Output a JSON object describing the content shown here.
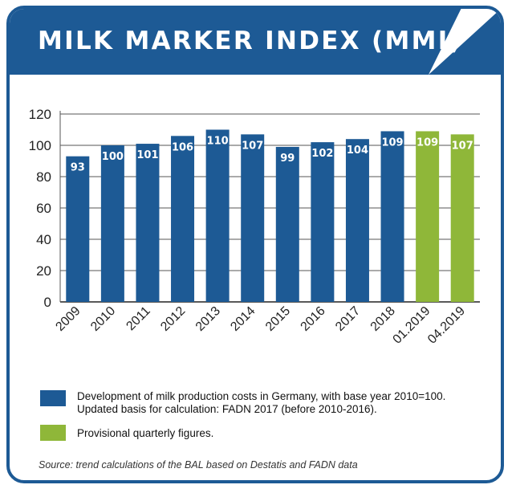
{
  "title": "MILK MARKER INDEX (MMI)",
  "colors": {
    "frame": "#1d5a95",
    "bar_annual": "#1d5a95",
    "bar_provisional": "#8fb739"
  },
  "legend": [
    {
      "label": "Development of milk production costs in Germany, with base year 2010=100.",
      "label2": "Updated basis for calculation: FADN 2017 (before 2010-2016).",
      "color": "#1d5a95"
    },
    {
      "label": "Provisional quarterly figures.",
      "color": "#8fb739"
    }
  ],
  "source": "Source: trend calculations of the BAL based on Destatis and FADN data",
  "chart_data": {
    "type": "bar",
    "categories": [
      "2009",
      "2010",
      "2011",
      "2012",
      "2013",
      "2014",
      "2015",
      "2016",
      "2017",
      "2018",
      "01.2019",
      "04.2019"
    ],
    "values": [
      93,
      100,
      101,
      106,
      110,
      107,
      99,
      102,
      104,
      109,
      109,
      107
    ],
    "provisional": [
      false,
      false,
      false,
      false,
      false,
      false,
      false,
      false,
      false,
      false,
      true,
      true
    ],
    "yticks": [
      0,
      20,
      40,
      60,
      80,
      100,
      120
    ],
    "ylim": [
      0,
      120
    ],
    "grid": true
  }
}
